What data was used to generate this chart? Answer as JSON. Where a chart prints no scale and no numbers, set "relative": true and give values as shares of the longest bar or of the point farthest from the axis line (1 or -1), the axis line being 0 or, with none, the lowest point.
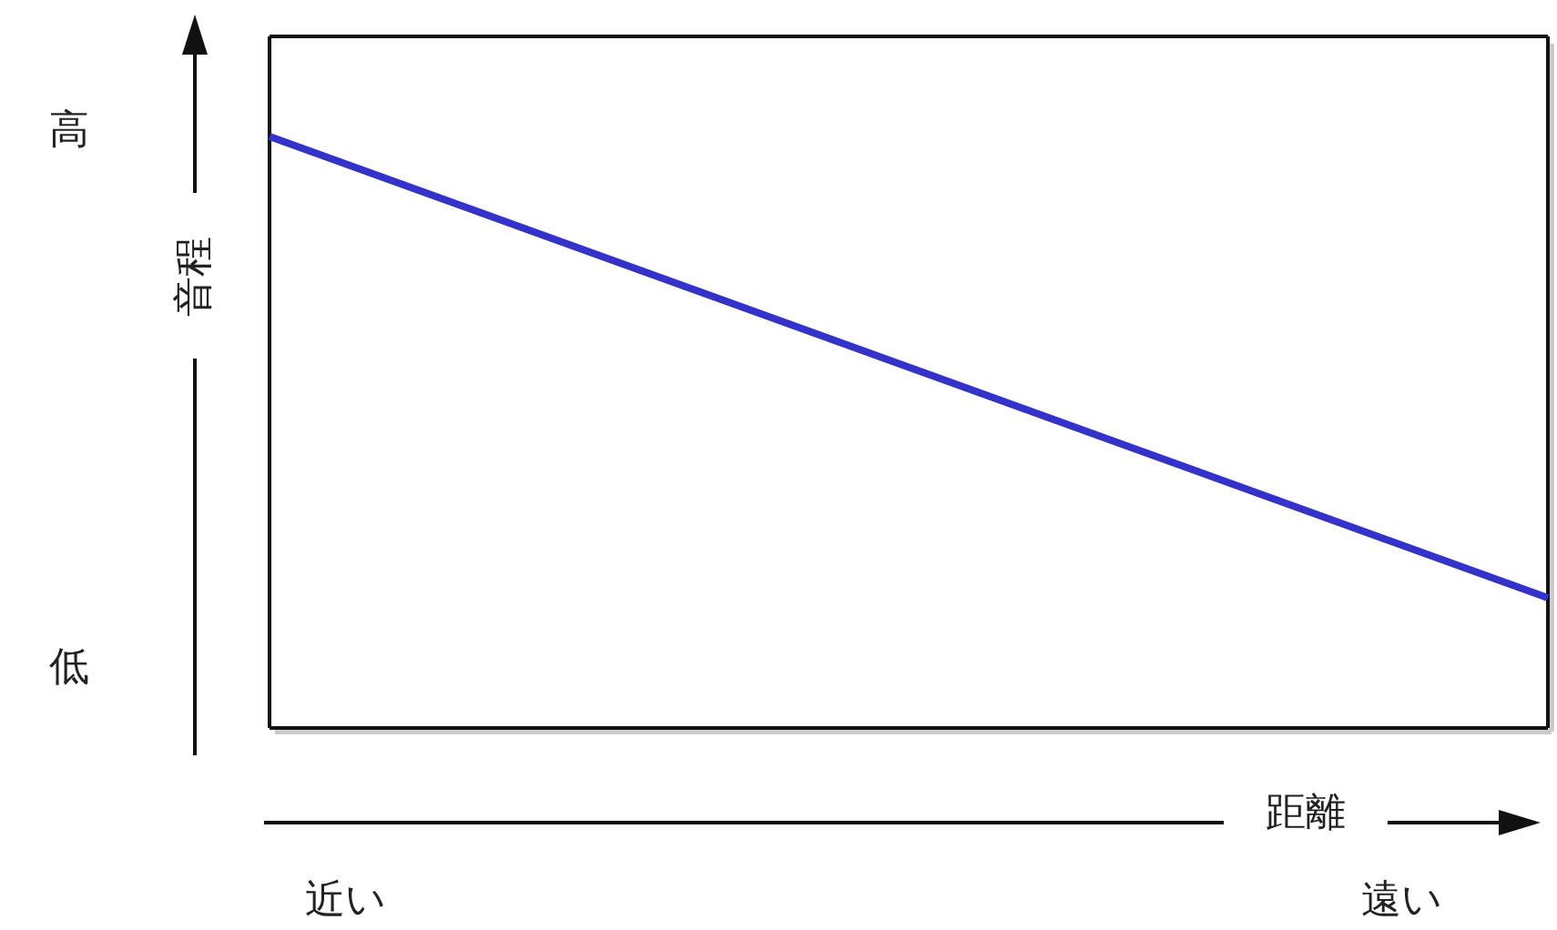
{
  "chart_data": {
    "type": "line",
    "relative": true,
    "xlabel": "距離",
    "ylabel": "音程",
    "categories": [
      null,
      null
    ],
    "annotations": [
      "高",
      "低",
      "近い",
      "遠い"
    ],
    "series": [
      {
        "color": "#3333cc",
        "values": [
          1,
          0.22
        ]
      }
    ]
  }
}
